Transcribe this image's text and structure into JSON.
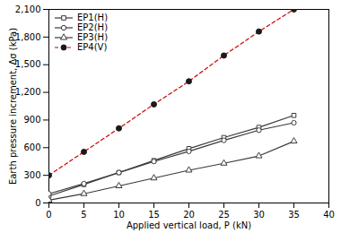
{
  "chart_data": {
    "type": "line",
    "x": [
      0,
      5,
      10,
      15,
      20,
      25,
      30,
      35
    ],
    "series": [
      {
        "name": "EP1(H)",
        "color": "#3a3a3a",
        "marker": "square",
        "line_style": "solid",
        "values": [
          75,
          200,
          330,
          460,
          590,
          710,
          820,
          950
        ]
      },
      {
        "name": "EP2(H)",
        "color": "#3a3a3a",
        "marker": "circle",
        "line_style": "solid",
        "values": [
          100,
          210,
          330,
          450,
          560,
          680,
          790,
          870
        ]
      },
      {
        "name": "EP3(H)",
        "color": "#3a3a3a",
        "marker": "triangle",
        "line_style": "solid",
        "values": [
          30,
          100,
          185,
          270,
          355,
          430,
          510,
          670
        ]
      },
      {
        "name": "EP4(V)",
        "color": "#cc0000",
        "marker": "filled_circle",
        "line_style": "dashed",
        "values": [
          300,
          555,
          810,
          1070,
          1320,
          1600,
          1860,
          2100
        ]
      }
    ],
    "xlabel": "Applied vertical load, P (kN)",
    "ylabel": "Earth pressure increment, Δσ (kPa)",
    "xlim": [
      0,
      40
    ],
    "ylim": [
      0,
      2100
    ],
    "xticks": [
      0,
      5,
      10,
      15,
      20,
      25,
      30,
      35,
      40
    ],
    "yticks": [
      0,
      300,
      600,
      900,
      {
        "value": 1200,
        "label": "1,200"
      },
      {
        "value": 1500,
        "label": "1,500"
      },
      {
        "value": 1800,
        "label": "1,800"
      },
      {
        "value": 2100,
        "label": "2,100"
      }
    ],
    "grid": false,
    "legend": "upper left"
  }
}
